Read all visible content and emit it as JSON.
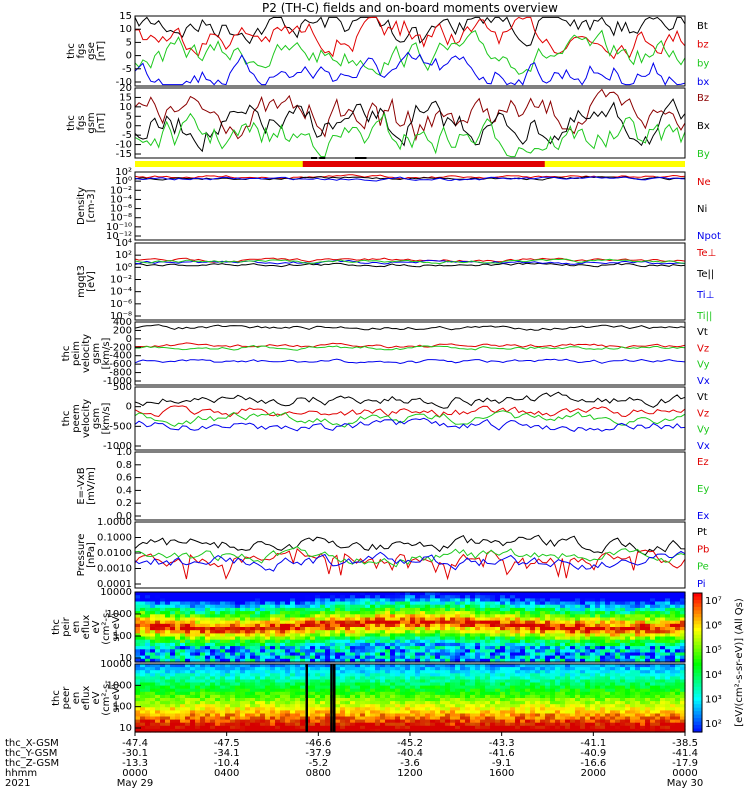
{
  "title": "P2 (TH-C) fields and on-board moments overview",
  "colors": {
    "black": "#000000",
    "red": "#e00000",
    "green": "#1ec81e",
    "blue": "#0000ee",
    "darkred": "#8b0000",
    "yellow": "#ffff00"
  },
  "chart_data": [
    {
      "type": "line",
      "id": "fgs_gse",
      "ylabel": [
        "thc",
        "fgs",
        "gse",
        "[nT]"
      ],
      "yticks": [
        "15",
        "10",
        "5",
        "0",
        "-5",
        "-10"
      ],
      "ylim": [
        -15,
        15
      ],
      "series": [
        {
          "name": "Bt",
          "color": "#000000"
        },
        {
          "name": "bz",
          "color": "#e00000"
        },
        {
          "name": "by",
          "color": "#1ec81e"
        },
        {
          "name": "bx",
          "color": "#0000ee"
        }
      ]
    },
    {
      "type": "line",
      "id": "fgs_gsm",
      "ylabel": [
        "thc",
        "fgs",
        "gsm",
        "[nT]"
      ],
      "yticks": [
        "20",
        "15",
        "10",
        "5",
        "0",
        "-5",
        "-10",
        "-15"
      ],
      "ylim": [
        -18,
        20
      ],
      "series": [
        {
          "name": "Bz",
          "color": "#8b0000"
        },
        {
          "name": "Bx",
          "color": "#000000"
        },
        {
          "name": "By",
          "color": "#1ec81e"
        }
      ]
    },
    {
      "type": "line",
      "id": "density",
      "ylabel": [
        "Density",
        "[cm-3]"
      ],
      "yticks": [
        "10²",
        "10⁰",
        "10⁻²",
        "10⁻⁴",
        "10⁻⁶",
        "10⁻⁸",
        "10⁻¹⁰",
        "10⁻¹²"
      ],
      "scale": "log",
      "series": [
        {
          "name": "Ne",
          "color": "#e00000"
        },
        {
          "name": "Ni",
          "color": "#000000"
        },
        {
          "name": "Npot",
          "color": "#0000ee"
        }
      ]
    },
    {
      "type": "line",
      "id": "temperature",
      "ylabel": [
        "mgqt3",
        "[eV]"
      ],
      "yticks": [
        "10⁴",
        "10²",
        "10⁰",
        "10⁻²",
        "10⁻⁴",
        "10⁻⁶",
        "10⁻⁸"
      ],
      "scale": "log",
      "series": [
        {
          "name": "Te⊥",
          "color": "#e00000"
        },
        {
          "name": "Te||",
          "color": "#000000"
        },
        {
          "name": "Ti⊥",
          "color": "#0000ee"
        },
        {
          "name": "Ti||",
          "color": "#1ec81e"
        }
      ]
    },
    {
      "type": "line",
      "id": "peim_velocity",
      "ylabel": [
        "thc",
        "peim",
        "velocity",
        "gsm",
        "[km/s]"
      ],
      "yticks": [
        "400",
        "200",
        "0",
        "-200",
        "-400",
        "-600",
        "-800",
        "-1000"
      ],
      "ylim": [
        -1000,
        500
      ],
      "series": [
        {
          "name": "Vt",
          "color": "#000000"
        },
        {
          "name": "Vz",
          "color": "#e00000"
        },
        {
          "name": "Vy",
          "color": "#1ec81e"
        },
        {
          "name": "Vx",
          "color": "#0000ee"
        }
      ]
    },
    {
      "type": "line",
      "id": "peem_velocity",
      "ylabel": [
        "thc",
        "peem",
        "velocity",
        "gsm",
        "[km/s]"
      ],
      "yticks": [
        "500",
        "0",
        "-500",
        "-1000"
      ],
      "ylim": [
        -1000,
        800
      ],
      "series": [
        {
          "name": "Vt",
          "color": "#000000"
        },
        {
          "name": "Vz",
          "color": "#e00000"
        },
        {
          "name": "Vy",
          "color": "#1ec81e"
        },
        {
          "name": "Vx",
          "color": "#0000ee"
        }
      ]
    },
    {
      "type": "line",
      "id": "efield",
      "ylabel": [
        "E=-VxB",
        "[mV/m]"
      ],
      "yticks": [
        "1.0",
        "0.8",
        "0.6",
        "0.4",
        "0.2",
        "0.0"
      ],
      "ylim": [
        0,
        1
      ],
      "series": [
        {
          "name": "Ez",
          "color": "#e00000"
        },
        {
          "name": "Ey",
          "color": "#1ec81e"
        },
        {
          "name": "Ex",
          "color": "#0000ee"
        }
      ]
    },
    {
      "type": "line",
      "id": "pressure",
      "ylabel": [
        "Pressure",
        "[nPa]"
      ],
      "yticks": [
        "1.0000",
        "0.1000",
        "0.0100",
        "0.0010",
        "0.0001"
      ],
      "scale": "log",
      "series": [
        {
          "name": "Pt",
          "color": "#000000"
        },
        {
          "name": "Pb",
          "color": "#e00000"
        },
        {
          "name": "Pe",
          "color": "#1ec81e"
        },
        {
          "name": "Pi",
          "color": "#0000ee"
        }
      ]
    },
    {
      "type": "heatmap",
      "id": "peir_spec",
      "ylabel": [
        "thc",
        "peir",
        "en",
        "eflux",
        "eV",
        "(cm²-s-",
        "sr-eV)"
      ],
      "yticks": [
        "10000",
        "1000",
        "100",
        "10"
      ],
      "scale": "log"
    },
    {
      "type": "heatmap",
      "id": "peer_spec",
      "ylabel": [
        "thc",
        "peer",
        "en",
        "eflux",
        "eV",
        "(cm²-s-",
        "sr-eV)"
      ],
      "yticks": [
        "10000",
        "1000",
        "100",
        "10"
      ],
      "scale": "log"
    }
  ],
  "colorbar": {
    "ticks": [
      "10⁷",
      "10⁶",
      "10⁵",
      "10⁴",
      "10³",
      "10²"
    ],
    "label": "[eV/(cm²-s-sr-eV)]  (All Qs)"
  },
  "xaxis": {
    "rows": [
      {
        "label": "thc_X-GSM",
        "values": [
          "-47.4",
          "-47.5",
          "-46.6",
          "-45.2",
          "-43.3",
          "-41.1",
          "-38.5"
        ]
      },
      {
        "label": "thc_Y-GSM",
        "values": [
          "-30.1",
          "-34.1",
          "-37.9",
          "-40.4",
          "-41.6",
          "-40.9",
          "-41.4"
        ]
      },
      {
        "label": "thc_Z-GSM",
        "values": [
          "-13.3",
          "-10.4",
          "-5.2",
          "-3.6",
          "-9.1",
          "-16.6",
          "-17.9"
        ]
      },
      {
        "label": "hhmm",
        "values": [
          "0000",
          "0400",
          "0800",
          "1200",
          "1600",
          "2000",
          "0000"
        ]
      }
    ],
    "year": "2021",
    "start_date": "May 29",
    "end_date": "May 30"
  }
}
